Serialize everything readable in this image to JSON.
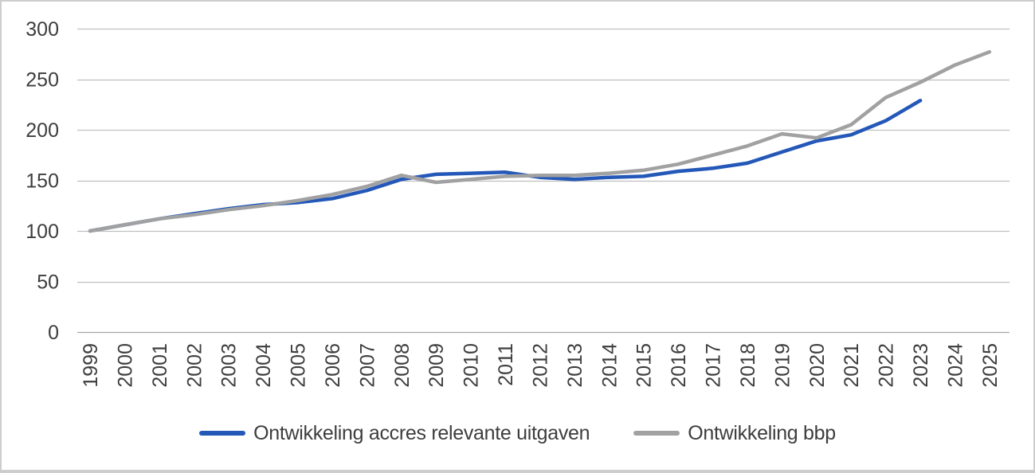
{
  "chart_data": {
    "type": "line",
    "title": "",
    "xlabel": "",
    "ylabel": "",
    "x": [
      1999,
      2000,
      2001,
      2002,
      2003,
      2004,
      2005,
      2006,
      2007,
      2008,
      2009,
      2010,
      2011,
      2012,
      2013,
      2014,
      2015,
      2016,
      2017,
      2018,
      2019,
      2020,
      2021,
      2022,
      2023,
      2024,
      2025
    ],
    "series": [
      {
        "name": "Ontwikkeling accres relevante uitgaven",
        "color": "#2458b8",
        "values": [
          100,
          106,
          112,
          117,
          122,
          126,
          128,
          132,
          140,
          151,
          156,
          157,
          158,
          153,
          151,
          153,
          154,
          159,
          162,
          167,
          178,
          189,
          195,
          209,
          229
        ]
      },
      {
        "name": "Ontwikkeling bbp",
        "color": "#a1a1a1",
        "values": [
          100,
          106,
          112,
          116,
          121,
          125,
          130,
          136,
          144,
          155,
          148,
          151,
          154,
          155,
          155,
          157,
          160,
          166,
          175,
          184,
          196,
          192,
          205,
          232,
          247,
          264,
          277
        ]
      }
    ],
    "ylim": [
      0,
      300
    ],
    "yticks": [
      0,
      50,
      100,
      150,
      200,
      250,
      300
    ],
    "grid": "horizontal-only",
    "legend_position": "bottom-center"
  },
  "legend": {
    "items": [
      {
        "label": "Ontwikkeling accres relevante uitgaven",
        "color": "#2458b8"
      },
      {
        "label": "Ontwikkeling bbp",
        "color": "#a1a1a1"
      }
    ]
  },
  "colors": {
    "axis_text": "#3d3d3d",
    "gridline": "#bfbfbf",
    "axis_line": "#a6a6a6",
    "figure_border": "#cdcdcd",
    "background": "#ffffff"
  }
}
